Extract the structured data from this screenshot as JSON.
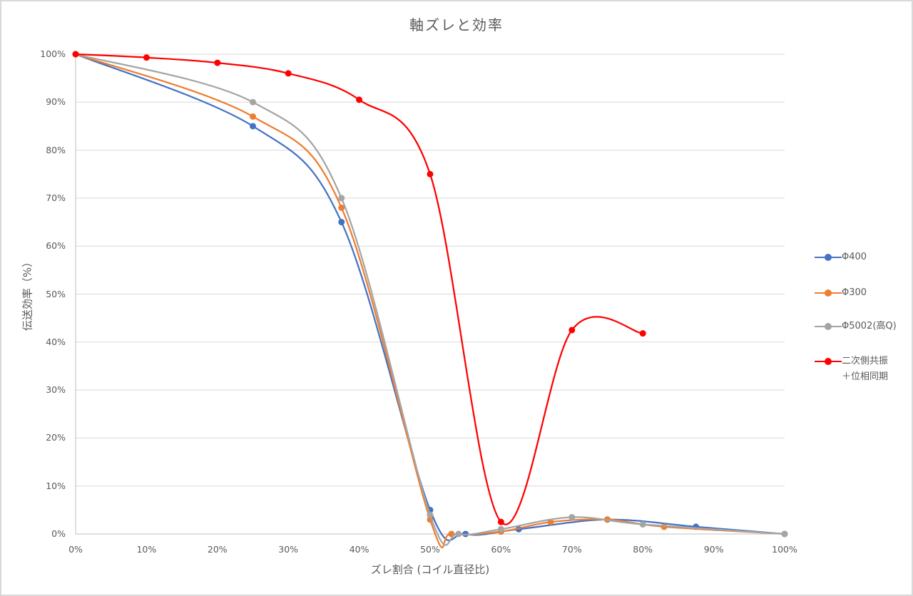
{
  "chart": {
    "title": "軸ズレと効率",
    "xlabel": "ズレ割合 (コイル直径比)",
    "ylabel": "伝送効率（%）",
    "yticks": [
      "0%",
      "10%",
      "20%",
      "30%",
      "40%",
      "50%",
      "60%",
      "70%",
      "80%",
      "90%",
      "100%"
    ],
    "xticks": [
      "0%",
      "10%",
      "20%",
      "30%",
      "40%",
      "50%",
      "60%",
      "70%",
      "80%",
      "90%",
      "100%"
    ],
    "legend": [
      {
        "label": "Φ400",
        "color": "#4472c4"
      },
      {
        "label": "Φ300",
        "color": "#ed7d31"
      },
      {
        "label": "Φ5002(高Q)",
        "color": "#a5a5a5"
      },
      {
        "label": "二次側共振\n＋位相同期",
        "color": "#ff0000"
      }
    ]
  },
  "chart_data": {
    "type": "line",
    "title": "軸ズレと効率",
    "xlabel": "ズレ割合 (コイル直径比)",
    "ylabel": "伝送効率（%）",
    "xlim": [
      0,
      100
    ],
    "ylim": [
      0,
      100
    ],
    "grid": "horizontal",
    "legend_position": "right",
    "smoothed": true,
    "series": [
      {
        "name": "Φ400",
        "color": "#4472c4",
        "x": [
          0,
          25,
          37.5,
          50,
          55,
          62.5,
          75,
          87.5,
          100
        ],
        "y": [
          100,
          85,
          65,
          5,
          0,
          1,
          3,
          1.5,
          0
        ]
      },
      {
        "name": "Φ300",
        "color": "#ed7d31",
        "x": [
          0,
          25,
          37.5,
          50,
          53,
          60,
          67,
          75,
          83,
          100
        ],
        "y": [
          100,
          87,
          68,
          3,
          0,
          0.5,
          2.5,
          3,
          1.5,
          0
        ]
      },
      {
        "name": "Φ5002(高Q)",
        "color": "#a5a5a5",
        "x": [
          0,
          25,
          37.5,
          50,
          54,
          60,
          70,
          80,
          100
        ],
        "y": [
          100,
          90,
          70,
          4,
          0,
          1,
          3.5,
          2,
          0
        ]
      },
      {
        "name": "二次側共振＋位相同期",
        "color": "#ff0000",
        "x": [
          0,
          10,
          20,
          30,
          40,
          50,
          60,
          70,
          80
        ],
        "y": [
          100,
          99.3,
          98.2,
          96,
          90.5,
          75,
          2.5,
          42.5,
          41.8
        ]
      }
    ]
  }
}
